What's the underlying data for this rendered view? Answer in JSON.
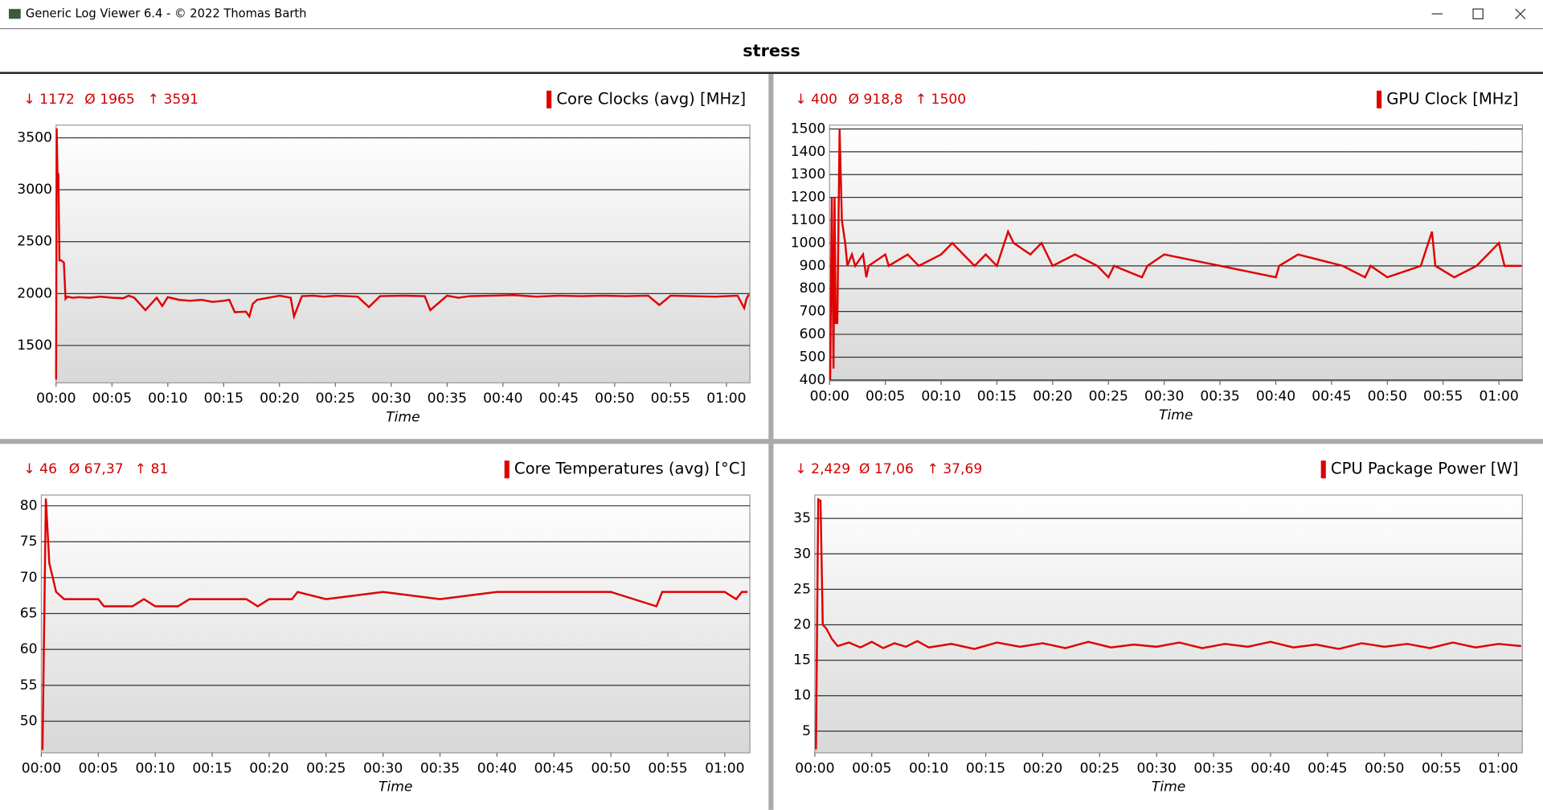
{
  "window": {
    "title": "Generic Log Viewer 6.4 - © 2022 Thomas Barth"
  },
  "header": {
    "title": "stress"
  },
  "chart_data": [
    {
      "type": "line",
      "xlabel": "Time",
      "stats": [
        "↓ 1172",
        "Ø 1965",
        "↑ 3591"
      ],
      "x": [
        0,
        0.05,
        0.12,
        0.2,
        0.3,
        0.45,
        0.7,
        0.85,
        1,
        1.5,
        2,
        3,
        4,
        5,
        6,
        6.5,
        7,
        8,
        9,
        9.5,
        10,
        11,
        12,
        13,
        14,
        15,
        15.5,
        16,
        17,
        17.3,
        17.6,
        18,
        19,
        20,
        21,
        21.3,
        22,
        23,
        24,
        25,
        27,
        28,
        29,
        31,
        33,
        33.5,
        35,
        36,
        37,
        39,
        41,
        43,
        45,
        47,
        49,
        51,
        53,
        54,
        55,
        57,
        59,
        61,
        61.6,
        61.8,
        62
      ],
      "series": [
        {
          "name": "Core Clocks (avg) [MHz]",
          "color": "#e00000",
          "values": [
            1172,
            3591,
            3150,
            3150,
            2320,
            2320,
            2300,
            1950,
            1970,
            1960,
            1965,
            1960,
            1970,
            1960,
            1955,
            1980,
            1960,
            1840,
            1960,
            1880,
            1965,
            1940,
            1930,
            1940,
            1920,
            1930,
            1940,
            1820,
            1825,
            1780,
            1900,
            1940,
            1960,
            1980,
            1960,
            1780,
            1975,
            1980,
            1970,
            1980,
            1970,
            1870,
            1975,
            1980,
            1975,
            1840,
            1980,
            1960,
            1975,
            1980,
            1985,
            1970,
            1980,
            1975,
            1980,
            1975,
            1980,
            1890,
            1980,
            1975,
            1970,
            1980,
            1860,
            1950,
            1990
          ]
        }
      ],
      "xlim": [
        0,
        62.1
      ],
      "ylim": [
        1140,
        3623
      ],
      "yticks": [
        1500,
        2000,
        2500,
        3000,
        3500
      ],
      "xticks": [
        {
          "value": 0,
          "label": "00:00"
        },
        {
          "value": 5,
          "label": "00:05"
        },
        {
          "value": 10,
          "label": "00:10"
        },
        {
          "value": 15,
          "label": "00:15"
        },
        {
          "value": 20,
          "label": "00:20"
        },
        {
          "value": 25,
          "label": "00:25"
        },
        {
          "value": 30,
          "label": "00:30"
        },
        {
          "value": 35,
          "label": "00:35"
        },
        {
          "value": 40,
          "label": "00:40"
        },
        {
          "value": 45,
          "label": "00:45"
        },
        {
          "value": 50,
          "label": "00:50"
        },
        {
          "value": 55,
          "label": "00:55"
        },
        {
          "value": 60,
          "label": "01:00"
        }
      ],
      "grid": true
    },
    {
      "type": "line",
      "xlabel": "Time",
      "stats": [
        "↓ 400",
        "Ø 918,8",
        "↑ 1500"
      ],
      "x": [
        0.05,
        0.2,
        0.35,
        0.45,
        0.55,
        0.7,
        0.9,
        1.1,
        1.4,
        1.6,
        2,
        2.3,
        3,
        3.3,
        3.5,
        5,
        5.3,
        7,
        8,
        10,
        11,
        12,
        13,
        14,
        15,
        16,
        16.5,
        18,
        19,
        20,
        22,
        24,
        25,
        25.5,
        28,
        28.5,
        30,
        35,
        40,
        40.3,
        42,
        46,
        48,
        48.5,
        50,
        53,
        54,
        54.3,
        56,
        58,
        60,
        60.5,
        62
      ],
      "series": [
        {
          "name": "GPU Clock [MHz]",
          "color": "#e00000",
          "values": [
            400,
            1200,
            450,
            1200,
            650,
            650,
            1500,
            1100,
            1000,
            900,
            950,
            900,
            950,
            850,
            900,
            950,
            900,
            950,
            900,
            950,
            1000,
            950,
            900,
            950,
            900,
            1050,
            1000,
            950,
            1000,
            900,
            950,
            900,
            850,
            900,
            850,
            900,
            950,
            900,
            850,
            900,
            950,
            900,
            850,
            900,
            850,
            900,
            1050,
            900,
            850,
            900,
            1000,
            900,
            900
          ]
        }
      ],
      "xlim": [
        0,
        62.1
      ],
      "ylim": [
        396,
        1517
      ],
      "yticks": [
        400,
        500,
        600,
        700,
        800,
        900,
        1000,
        1100,
        1200,
        1300,
        1400,
        1500
      ],
      "xticks": [
        {
          "value": 0,
          "label": "00:00"
        },
        {
          "value": 5,
          "label": "00:05"
        },
        {
          "value": 10,
          "label": "00:10"
        },
        {
          "value": 15,
          "label": "00:15"
        },
        {
          "value": 20,
          "label": "00:20"
        },
        {
          "value": 25,
          "label": "00:25"
        },
        {
          "value": 30,
          "label": "00:30"
        },
        {
          "value": 35,
          "label": "00:35"
        },
        {
          "value": 40,
          "label": "00:40"
        },
        {
          "value": 45,
          "label": "00:45"
        },
        {
          "value": 50,
          "label": "00:50"
        },
        {
          "value": 55,
          "label": "00:55"
        },
        {
          "value": 60,
          "label": "01:00"
        }
      ],
      "grid": true
    },
    {
      "type": "line",
      "xlabel": "Time",
      "stats": [
        "↓ 46",
        "Ø 67,37",
        "↑ 81"
      ],
      "x": [
        0.1,
        0.4,
        0.7,
        1,
        1.3,
        2,
        5,
        5.5,
        8,
        9,
        10,
        12,
        13,
        18,
        19,
        20,
        22,
        22.5,
        25,
        30,
        35,
        40,
        45,
        50,
        54,
        54.5,
        60,
        61,
        61.5,
        62
      ],
      "series": [
        {
          "name": "Core Temperatures (avg) [°C]",
          "color": "#e00000",
          "values": [
            46,
            81,
            72,
            70,
            68,
            67,
            67,
            66,
            66,
            67,
            66,
            66,
            67,
            67,
            66,
            67,
            67,
            68,
            67,
            68,
            67,
            68,
            68,
            68,
            66,
            68,
            68,
            67,
            68,
            68
          ]
        }
      ],
      "xlim": [
        0,
        62.2
      ],
      "ylim": [
        45.6,
        81.5
      ],
      "yticks": [
        50,
        55,
        60,
        65,
        70,
        75,
        80
      ],
      "xticks": [
        {
          "value": 0,
          "label": "00:00"
        },
        {
          "value": 5,
          "label": "00:05"
        },
        {
          "value": 10,
          "label": "00:10"
        },
        {
          "value": 15,
          "label": "00:15"
        },
        {
          "value": 20,
          "label": "00:20"
        },
        {
          "value": 25,
          "label": "00:25"
        },
        {
          "value": 30,
          "label": "00:30"
        },
        {
          "value": 35,
          "label": "00:35"
        },
        {
          "value": 40,
          "label": "00:40"
        },
        {
          "value": 45,
          "label": "00:45"
        },
        {
          "value": 50,
          "label": "00:50"
        },
        {
          "value": 55,
          "label": "00:55"
        },
        {
          "value": 60,
          "label": "01:00"
        }
      ],
      "grid": true
    },
    {
      "type": "line",
      "xlabel": "Time",
      "stats": [
        "↓ 2,429",
        "Ø 17,06",
        "↑ 37,69"
      ],
      "x": [
        0.1,
        0.3,
        0.5,
        0.7,
        1,
        1.5,
        2,
        3,
        4,
        5,
        6,
        7,
        8,
        9,
        10,
        12,
        14,
        16,
        18,
        20,
        22,
        24,
        26,
        28,
        30,
        32,
        34,
        36,
        38,
        40,
        42,
        44,
        46,
        48,
        50,
        52,
        54,
        56,
        58,
        60,
        62
      ],
      "series": [
        {
          "name": "CPU Package Power [W]",
          "color": "#e00000",
          "values": [
            2.429,
            37.69,
            37.5,
            20,
            19.5,
            18,
            17,
            17.5,
            16.8,
            17.6,
            16.7,
            17.4,
            16.9,
            17.7,
            16.8,
            17.3,
            16.6,
            17.5,
            16.9,
            17.4,
            16.7,
            17.6,
            16.8,
            17.2,
            16.9,
            17.5,
            16.7,
            17.3,
            16.9,
            17.6,
            16.8,
            17.2,
            16.6,
            17.4,
            16.9,
            17.3,
            16.7,
            17.5,
            16.8,
            17.3,
            17
          ]
        }
      ],
      "xlim": [
        0,
        62.1
      ],
      "ylim": [
        1.94,
        38.3
      ],
      "yticks": [
        5,
        10,
        15,
        20,
        25,
        30,
        35
      ],
      "xticks": [
        {
          "value": 0,
          "label": "00:00"
        },
        {
          "value": 5,
          "label": "00:05"
        },
        {
          "value": 10,
          "label": "00:10"
        },
        {
          "value": 15,
          "label": "00:15"
        },
        {
          "value": 20,
          "label": "00:20"
        },
        {
          "value": 25,
          "label": "00:25"
        },
        {
          "value": 30,
          "label": "00:30"
        },
        {
          "value": 35,
          "label": "00:35"
        },
        {
          "value": 40,
          "label": "00:40"
        },
        {
          "value": 45,
          "label": "00:45"
        },
        {
          "value": 50,
          "label": "00:50"
        },
        {
          "value": 55,
          "label": "00:55"
        },
        {
          "value": 60,
          "label": "01:00"
        }
      ],
      "grid": true
    }
  ]
}
